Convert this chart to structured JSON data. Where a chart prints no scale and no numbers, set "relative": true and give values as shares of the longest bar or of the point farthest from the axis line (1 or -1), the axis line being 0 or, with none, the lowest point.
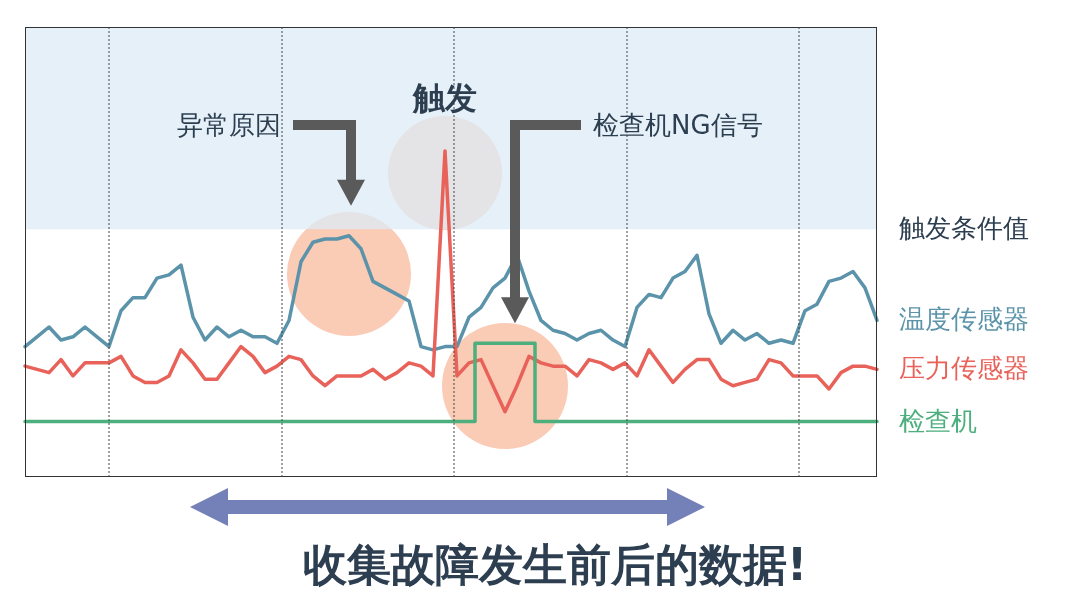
{
  "chart_data": {
    "type": "line",
    "relative": true,
    "categories": [
      null,
      null,
      null,
      null,
      null,
      null,
      null,
      null,
      null,
      null,
      null,
      null,
      null,
      null,
      null,
      null,
      null,
      null,
      null,
      null,
      null,
      null,
      null,
      null,
      null,
      null,
      null,
      null,
      null,
      null,
      null,
      null,
      null,
      null,
      null,
      null,
      null,
      null,
      null,
      null,
      null,
      null,
      null,
      null,
      null,
      null,
      null,
      null,
      null,
      null,
      null,
      null,
      null,
      null,
      null,
      null,
      null,
      null,
      null,
      null,
      null,
      null,
      null,
      null,
      null,
      null,
      null,
      null,
      null,
      null,
      null,
      null
    ],
    "marker": "none",
    "line_style": "solid",
    "series": [
      {
        "name": "温度传感器",
        "color": "#5b93aa",
        "values": [
          0.4,
          0.43,
          0.46,
          0.42,
          0.43,
          0.46,
          0.43,
          0.4,
          0.51,
          0.55,
          0.55,
          0.61,
          0.62,
          0.65,
          0.49,
          0.42,
          0.46,
          0.43,
          0.45,
          0.43,
          0.43,
          0.41,
          0.48,
          0.66,
          0.72,
          0.73,
          0.73,
          0.74,
          0.7,
          0.6,
          0.58,
          0.56,
          0.54,
          0.4,
          0.39,
          0.4,
          0.4,
          0.49,
          0.52,
          0.58,
          0.61,
          0.68,
          0.57,
          0.48,
          0.45,
          0.44,
          0.42,
          0.44,
          0.45,
          0.42,
          0.4,
          0.52,
          0.56,
          0.55,
          0.61,
          0.63,
          0.68,
          0.5,
          0.41,
          0.45,
          0.42,
          0.44,
          0.41,
          0.42,
          0.41,
          0.51,
          0.53,
          0.6,
          0.61,
          0.63,
          0.58,
          0.48
        ]
      },
      {
        "name": "压力传感器",
        "color": "#e8625a",
        "values": [
          0.34,
          0.33,
          0.32,
          0.36,
          0.31,
          0.35,
          0.35,
          0.35,
          0.37,
          0.31,
          0.29,
          0.29,
          0.31,
          0.39,
          0.35,
          0.3,
          0.3,
          0.35,
          0.4,
          0.37,
          0.32,
          0.34,
          0.37,
          0.36,
          0.31,
          0.28,
          0.31,
          0.31,
          0.31,
          0.33,
          0.3,
          0.32,
          0.35,
          0.34,
          0.31,
          1,
          0.31,
          0.35,
          0.36,
          0.28,
          0.2,
          0.28,
          0.37,
          0.35,
          0.34,
          0.34,
          0.31,
          0.36,
          0.35,
          0.33,
          0.35,
          0.31,
          0.39,
          0.34,
          0.29,
          0.33,
          0.36,
          0.36,
          0.3,
          0.28,
          0.29,
          0.3,
          0.36,
          0.35,
          0.31,
          0.31,
          0.31,
          0.27,
          0.32,
          0.34,
          0.34,
          0.33
        ]
      },
      {
        "name": "检查机",
        "type": "step",
        "color": "#4caf7d",
        "values": [
          0.17,
          0.17,
          0.17,
          0.17,
          0.17,
          0.17,
          0.17,
          0.17,
          0.17,
          0.17,
          0.17,
          0.17,
          0.17,
          0.17,
          0.17,
          0.17,
          0.17,
          0.17,
          0.17,
          0.17,
          0.17,
          0.17,
          0.17,
          0.17,
          0.17,
          0.17,
          0.17,
          0.17,
          0.17,
          0.17,
          0.17,
          0.17,
          0.17,
          0.17,
          0.17,
          0.17,
          0.17,
          0.17,
          0.41,
          0.41,
          0.41,
          0.41,
          0.41,
          0.17,
          0.17,
          0.17,
          0.17,
          0.17,
          0.17,
          0.17,
          0.17,
          0.17,
          0.17,
          0.17,
          0.17,
          0.17,
          0.17,
          0.17,
          0.17,
          0.17,
          0.17,
          0.17,
          0.17,
          0.17,
          0.17,
          0.17,
          0.17,
          0.17,
          0.17,
          0.17,
          0.17,
          0.17
        ]
      }
    ],
    "bands": [
      {
        "axis": "y",
        "from": 0.76,
        "to": 1.38,
        "label": "触发条件值",
        "color": "#dcebf5"
      }
    ],
    "annotations": [
      "异常原因",
      "触发",
      "检查机NG信号",
      "收集故障发生前后的数据!"
    ]
  }
}
